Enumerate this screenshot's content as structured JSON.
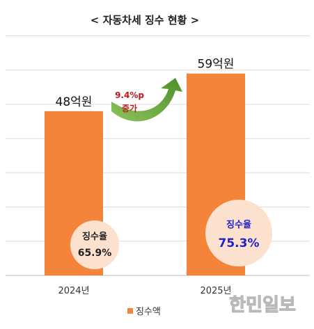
{
  "chart_data": {
    "type": "bar",
    "title": "< 자동차세 징수 현황 >",
    "categories": [
      "2024년",
      "2025년"
    ],
    "series": [
      {
        "name": "징수액",
        "values": [
          48,
          59
        ],
        "labels": [
          "48억원",
          "59억원"
        ],
        "color": "#f4843a"
      }
    ],
    "collection_rate": {
      "label": "징수율",
      "values": [
        "65.9%",
        "75.3%"
      ],
      "circle_color": "#fde1cf",
      "highlight_color": "#1e22c8"
    },
    "growth_annotation": {
      "line1": "9.4%p",
      "line2": "증가",
      "arrow_color": "#6aaa3d"
    },
    "ylim": [
      0,
      70
    ],
    "grid": true,
    "legend": "bottom-center"
  },
  "watermark": "한민일보"
}
